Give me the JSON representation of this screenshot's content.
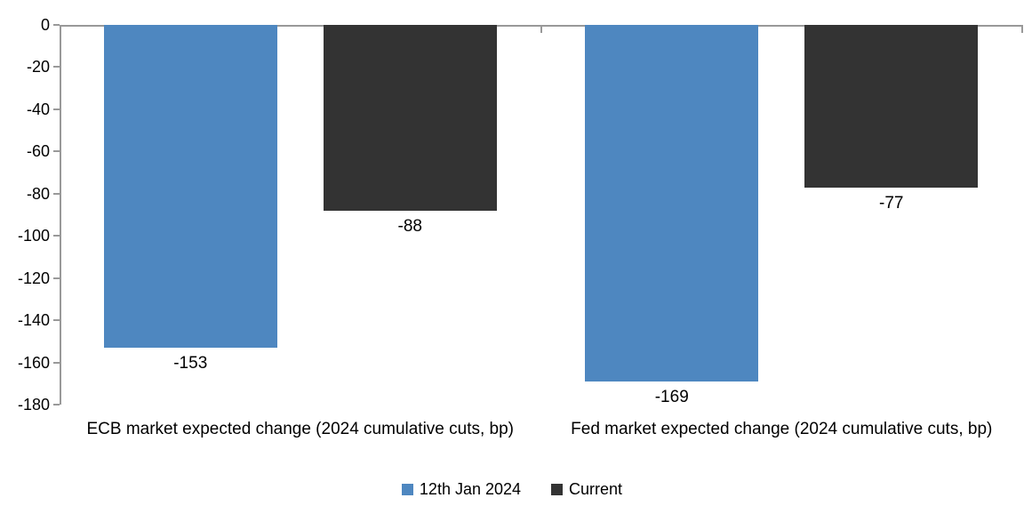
{
  "chart_data": {
    "type": "bar",
    "categories": [
      "ECB market expected change (2024 cumulative cuts, bp)",
      "Fed market expected change (2024 cumulative cuts, bp)"
    ],
    "series": [
      {
        "name": "12th Jan 2024",
        "color": "#4E87C0",
        "values": [
          -153,
          -169
        ]
      },
      {
        "name": "Current",
        "color": "#333333",
        "values": [
          -88,
          -77
        ]
      }
    ],
    "data_labels": [
      "-153",
      "-88",
      "-169",
      "-77"
    ],
    "title": "",
    "xlabel": "",
    "ylabel": "",
    "ylim": [
      -180,
      0
    ],
    "yticks": [
      0,
      -20,
      -40,
      -60,
      -80,
      -100,
      -120,
      -140,
      -160,
      -180
    ],
    "grid": false,
    "legend_position": "bottom",
    "axis_color": "#999999",
    "background_color": "#FFFFFF",
    "text_color": "#000000"
  }
}
